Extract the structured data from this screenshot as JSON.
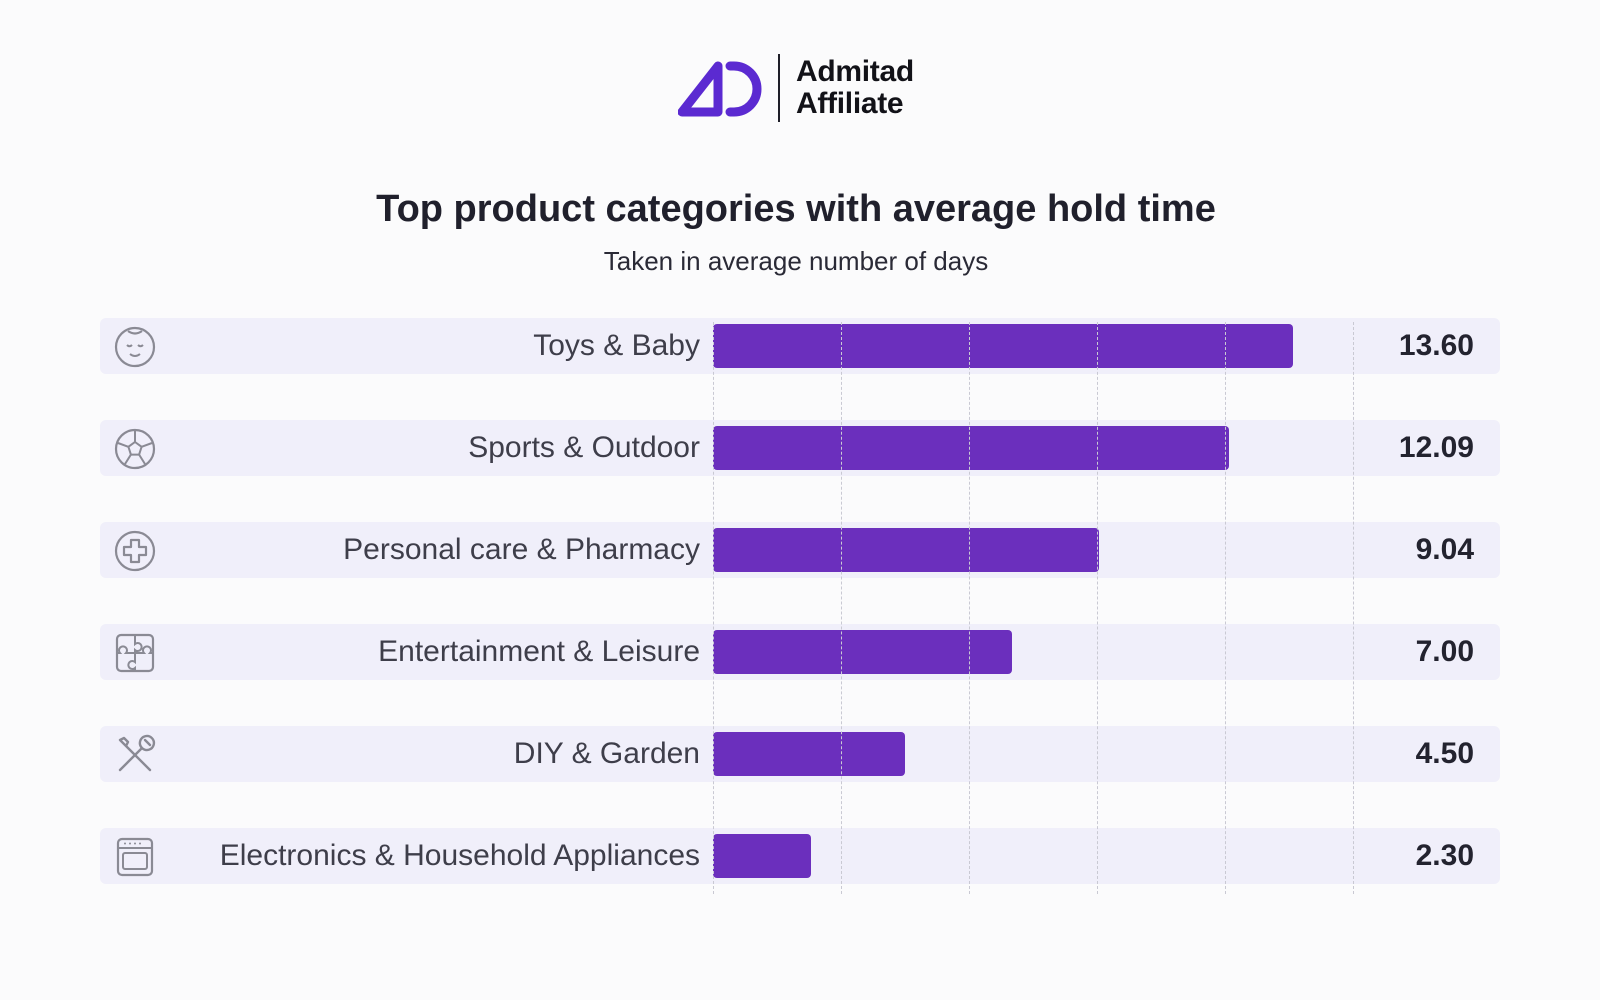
{
  "brand": {
    "name_line1": "Admitad",
    "name_line2": "Affiliate",
    "accent_color": "#5b2ad1"
  },
  "chart_data": {
    "type": "bar",
    "orientation": "horizontal",
    "title": "Top product categories with average hold time",
    "subtitle": "Taken in average number of days",
    "categories": [
      "Toys & Baby",
      "Sports & Outdoor",
      "Personal care & Pharmacy",
      "Entertainment & Leisure",
      "DIY & Garden",
      "Electronics & Household Appliances"
    ],
    "values": [
      13.6,
      12.09,
      9.04,
      7.0,
      4.5,
      2.3
    ],
    "value_labels": [
      "13.60",
      "12.09",
      "9.04",
      "7.00",
      "4.50",
      "2.30"
    ],
    "icons": [
      "baby-face-icon",
      "soccer-ball-icon",
      "medical-cross-icon",
      "puzzle-piece-icon",
      "tools-icon",
      "oven-icon"
    ],
    "xlim": [
      0,
      15
    ],
    "grid": true,
    "bar_color": "#6b2fbd",
    "row_background": "#f0effa"
  }
}
